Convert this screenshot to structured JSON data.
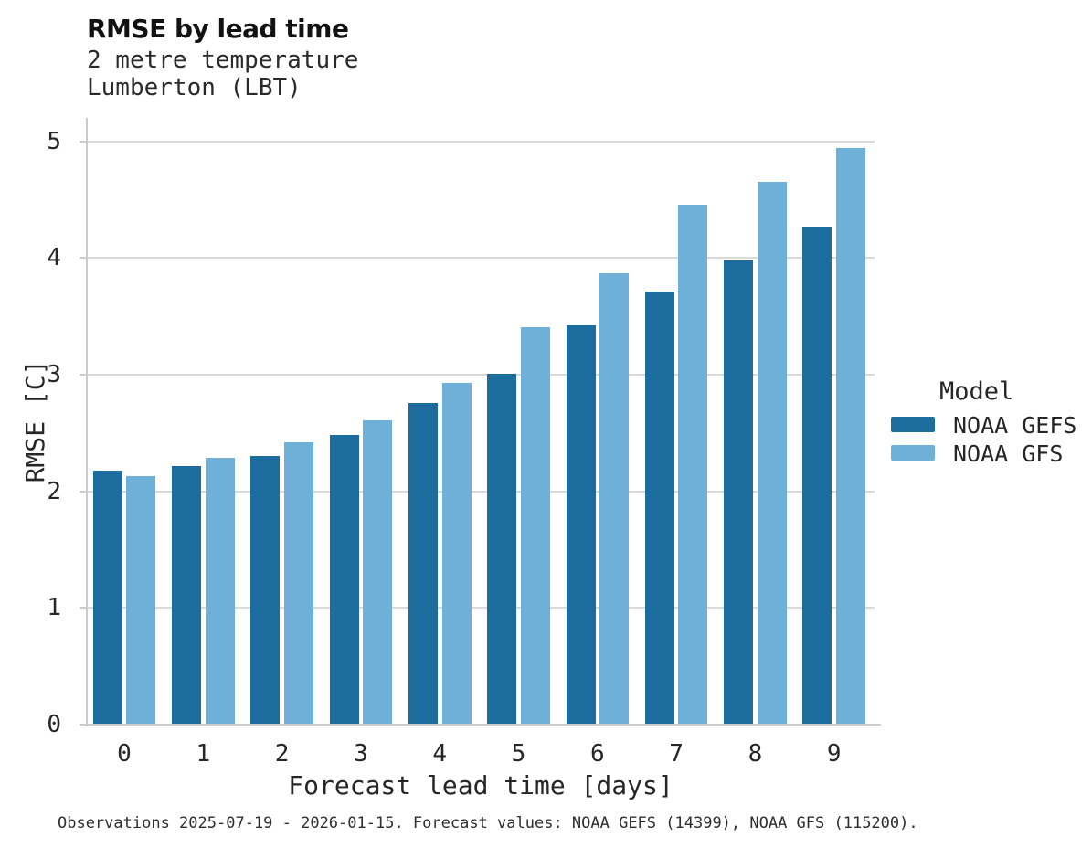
{
  "header": {
    "title": "RMSE by lead time",
    "subtitle1": "2 metre temperature",
    "subtitle2": "Lumberton (LBT)"
  },
  "chart_data": {
    "type": "bar",
    "title": "RMSE by lead time",
    "subtitle": [
      "2 metre temperature",
      "Lumberton (LBT)"
    ],
    "categories": [
      "0",
      "1",
      "2",
      "3",
      "4",
      "5",
      "6",
      "7",
      "8",
      "9"
    ],
    "series": [
      {
        "name": "NOAA GEFS",
        "color": "#1c6d9d",
        "values": [
          2.18,
          2.22,
          2.3,
          2.48,
          2.76,
          3.01,
          3.42,
          3.71,
          3.98,
          4.27
        ]
      },
      {
        "name": "NOAA GFS",
        "color": "#6fb0d9",
        "values": [
          2.13,
          2.29,
          2.42,
          2.61,
          2.93,
          3.41,
          3.87,
          4.46,
          4.65,
          4.94
        ]
      }
    ],
    "xlabel": "Forecast lead time [days]",
    "ylabel": "RMSE [C]",
    "ylim": [
      0,
      5.2
    ],
    "yticks": [
      0,
      1,
      2,
      3,
      4,
      5
    ],
    "grid": "horizontal",
    "legend_title": "Model",
    "legend_position": "right of plot, middle"
  },
  "legend": {
    "title": "Model"
  },
  "footer": {
    "caption": "Observations 2025-07-19 - 2026-01-15. Forecast values: NOAA GEFS (14399), NOAA GFS (115200)."
  }
}
